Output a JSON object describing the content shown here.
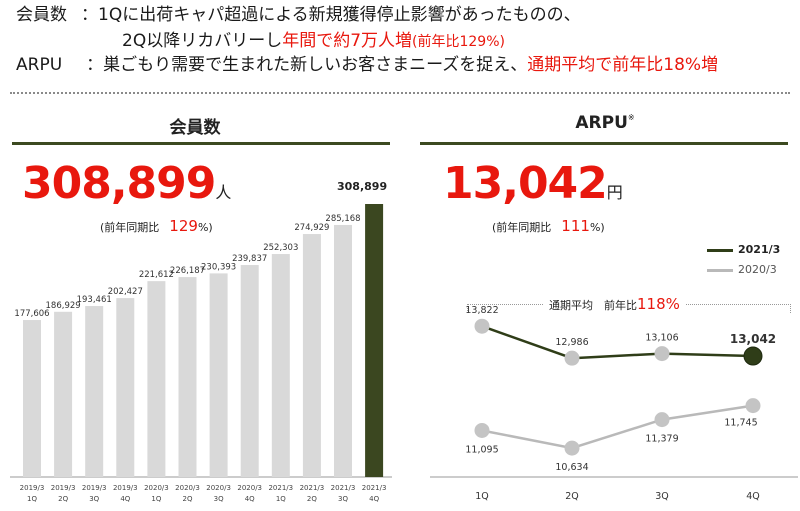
{
  "header": {
    "line1_label": "会員数",
    "line1_sep": "：",
    "line1_text": "1Qに出荷キャパ超過による新規獲得停止影響があったものの、",
    "line2_text_a": "2Q以降リカバリーし",
    "line2_text_red": "年間で約7万人増",
    "line2_text_red_small": "(前年比129%)",
    "line3_label": "ARPU",
    "line3_sep": "：",
    "line3_text_a": "巣ごもり需要で生まれた新しいお客さまニーズを捉え、",
    "line3_text_red": "通期平均で前年比18%増"
  },
  "left_panel": {
    "title": "会員数",
    "big_value": "308,899",
    "unit": "人",
    "yoy_label": "(前年同期比",
    "yoy_value": "129",
    "yoy_suffix": "%)",
    "highlight_label": "308,899"
  },
  "right_panel": {
    "title": "ARPU",
    "title_note": "※",
    "big_value": "13,042",
    "unit": "円",
    "yoy_label": "(前年同期比",
    "yoy_value": "111",
    "yoy_suffix": "%)",
    "legend": [
      {
        "name": "2021/3",
        "color": "#2f3d18"
      },
      {
        "name": "2020/3",
        "color": "#b9b9b9"
      }
    ],
    "annotation_label": "通期平均　前年比",
    "annotation_value": "118%"
  },
  "colors": {
    "accent_red": "#e8180e",
    "bar_gray": "#d9d9d9",
    "bar_highlight": "#3b4720",
    "line_2021": "#2f3d18",
    "line_2020": "#b9b9b9"
  },
  "chart_data": [
    {
      "type": "bar",
      "title": "会員数",
      "categories": [
        "2019/3 1Q",
        "2019/3 2Q",
        "2019/3 3Q",
        "2019/3 4Q",
        "2020/3 1Q",
        "2020/3 2Q",
        "2020/3 3Q",
        "2020/3 4Q",
        "2021/3 1Q",
        "2021/3 2Q",
        "2021/3 3Q",
        "2021/3 4Q"
      ],
      "tick_top": [
        "2019/3",
        "2019/3",
        "2019/3",
        "2019/3",
        "2020/3",
        "2020/3",
        "2020/3",
        "2020/3",
        "2021/3",
        "2021/3",
        "2021/3",
        "2021/3"
      ],
      "tick_bottom": [
        "1Q",
        "2Q",
        "3Q",
        "4Q",
        "1Q",
        "2Q",
        "3Q",
        "4Q",
        "1Q",
        "2Q",
        "3Q",
        "4Q"
      ],
      "values": [
        177606,
        186929,
        193461,
        202427,
        221612,
        226187,
        230393,
        239837,
        252303,
        274929,
        285168,
        308899
      ],
      "value_labels": [
        "177,606",
        "186,929",
        "193,461",
        "202,427",
        "221,612",
        "226,187",
        "230,393",
        "239,837",
        "252,303",
        "274,929",
        "285,168",
        ""
      ],
      "highlight_index": 11,
      "xlabel": "",
      "ylabel": "",
      "ylim": [
        0,
        310000
      ]
    },
    {
      "type": "line",
      "title": "ARPU",
      "x": [
        "1Q",
        "2Q",
        "3Q",
        "4Q"
      ],
      "series": [
        {
          "name": "2021/3",
          "values": [
            13822,
            12986,
            13106,
            13042
          ],
          "labels": [
            "13,822",
            "12,986",
            "13,106",
            "13,042"
          ]
        },
        {
          "name": "2020/3",
          "values": [
            11095,
            10634,
            11379,
            11745
          ],
          "labels": [
            "11,095",
            "10,634",
            "11,379",
            "11,745"
          ]
        }
      ],
      "xlabel": "",
      "ylabel": "",
      "ylim": [
        9800,
        14900
      ]
    }
  ]
}
